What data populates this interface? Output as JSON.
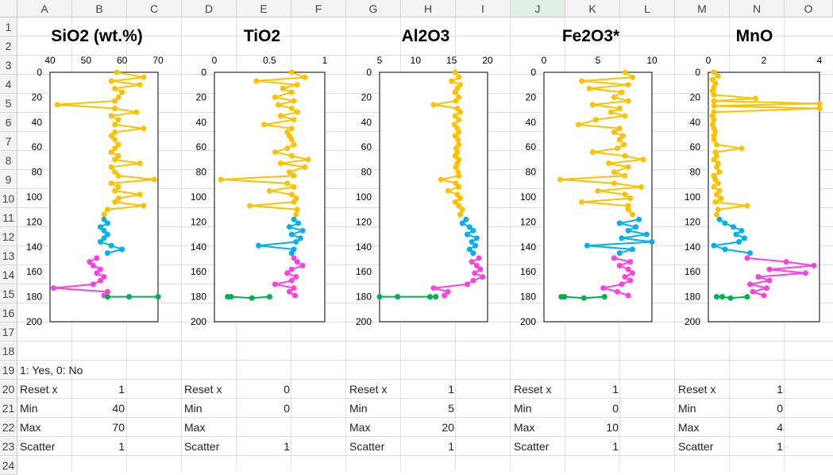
{
  "spreadsheet": {
    "columns": [
      "A",
      "B",
      "C",
      "D",
      "E",
      "F",
      "G",
      "H",
      "I",
      "J",
      "K",
      "L",
      "M",
      "N",
      "O"
    ],
    "selected_column": "J",
    "rows": [
      "1",
      "2",
      "3",
      "4",
      "5",
      "6",
      "7",
      "8",
      "9",
      "10",
      "11",
      "12",
      "13",
      "14",
      "15",
      "16",
      "17",
      "18",
      "19",
      "20",
      "21",
      "22",
      "23",
      "24"
    ]
  },
  "legend_note": "1: Yes, 0: No",
  "chart_data": [
    {
      "type": "scatter",
      "title": "SiO2 (wt.%)",
      "xlim": [
        40,
        70
      ],
      "xticks": [
        "40",
        "50",
        "60",
        "70"
      ],
      "ylim": [
        0,
        200
      ],
      "yticks": [
        "0",
        "20",
        "40",
        "60",
        "80",
        "100",
        "120",
        "140",
        "160",
        "180",
        "200"
      ],
      "y_inverted": true,
      "series": [
        {
          "name": "yellow",
          "color": "#FFC000",
          "depth": [
            0,
            4,
            7,
            10,
            13,
            16,
            20,
            23,
            26,
            29,
            32,
            35,
            38,
            42,
            45,
            48,
            51,
            54,
            58,
            61,
            64,
            67,
            70,
            73,
            76,
            80,
            83,
            86,
            89,
            92,
            95,
            98,
            101,
            104,
            107,
            110,
            114
          ],
          "values": [
            58.5,
            66,
            57,
            65,
            58,
            60,
            59,
            58,
            42,
            58,
            64,
            57,
            59,
            58,
            66,
            58,
            57,
            58,
            59,
            58,
            57,
            59,
            58,
            65,
            57,
            58,
            59,
            69,
            57,
            59,
            58,
            65,
            59,
            58,
            66,
            56,
            55
          ]
        },
        {
          "name": "blue",
          "color": "#00B0F0",
          "depth": [
            118,
            121,
            124,
            127,
            130,
            133,
            136,
            139,
            142,
            145
          ],
          "values": [
            55,
            56,
            54,
            55,
            56,
            55,
            54,
            57,
            60,
            56
          ]
        },
        {
          "name": "magenta",
          "color": "#FF40E0",
          "depth": [
            149,
            152,
            155,
            158,
            161,
            164,
            167,
            170,
            173,
            176,
            179
          ],
          "values": [
            53,
            51,
            52,
            54,
            53,
            55,
            54,
            52,
            41,
            56,
            55
          ]
        },
        {
          "name": "green",
          "color": "#00B050",
          "depth": [
            180,
            180,
            180
          ],
          "values": [
            56,
            62,
            70
          ]
        }
      ]
    },
    {
      "type": "scatter",
      "title": "TiO2",
      "xlim": [
        0,
        1
      ],
      "xticks": [
        "0",
        "0.5",
        "1"
      ],
      "ylim": [
        0,
        200
      ],
      "yticks": [
        "0",
        "20",
        "40",
        "60",
        "80",
        "100",
        "120",
        "140",
        "160",
        "180",
        "200"
      ],
      "y_inverted": true,
      "series": [
        {
          "name": "yellow",
          "color": "#FFC000",
          "depth": [
            0,
            4,
            7,
            10,
            13,
            16,
            20,
            23,
            26,
            29,
            32,
            35,
            38,
            42,
            45,
            48,
            51,
            54,
            58,
            61,
            64,
            67,
            70,
            73,
            76,
            80,
            83,
            86,
            89,
            92,
            95,
            98,
            101,
            104,
            107,
            110,
            114
          ],
          "values": [
            0.7,
            0.82,
            0.38,
            0.75,
            0.62,
            0.7,
            0.55,
            0.72,
            0.58,
            0.7,
            0.75,
            0.6,
            0.72,
            0.45,
            0.7,
            0.66,
            0.68,
            0.7,
            0.72,
            0.66,
            0.55,
            0.7,
            0.85,
            0.6,
            0.82,
            0.68,
            0.72,
            0.06,
            0.66,
            0.72,
            0.5,
            0.7,
            0.74,
            0.72,
            0.32,
            0.75,
            0.74
          ]
        },
        {
          "name": "blue",
          "color": "#00B0F0",
          "depth": [
            118,
            121,
            124,
            127,
            130,
            133,
            136,
            139,
            142,
            145
          ],
          "values": [
            0.72,
            0.76,
            0.68,
            0.8,
            0.7,
            0.78,
            0.74,
            0.4,
            0.72,
            0.7
          ]
        },
        {
          "name": "magenta",
          "color": "#FF40E0",
          "depth": [
            149,
            152,
            155,
            158,
            161,
            164,
            167,
            170,
            173,
            176,
            179
          ],
          "values": [
            0.72,
            0.75,
            0.8,
            0.7,
            0.66,
            0.74,
            0.7,
            0.55,
            0.72,
            0.68,
            0.73
          ]
        },
        {
          "name": "green",
          "color": "#00B050",
          "depth": [
            180,
            181,
            180,
            180
          ],
          "values": [
            0.5,
            0.34,
            0.15,
            0.12
          ]
        }
      ]
    },
    {
      "type": "scatter",
      "title": "Al2O3",
      "xlim": [
        5,
        20
      ],
      "xticks": [
        "5",
        "10",
        "15",
        "20"
      ],
      "ylim": [
        0,
        200
      ],
      "yticks": [
        "0",
        "20",
        "40",
        "60",
        "80",
        "100",
        "120",
        "140",
        "160",
        "180",
        "200"
      ],
      "y_inverted": true,
      "series": [
        {
          "name": "yellow",
          "color": "#FFC000",
          "depth": [
            0,
            4,
            7,
            10,
            13,
            16,
            20,
            23,
            26,
            29,
            32,
            35,
            38,
            42,
            45,
            48,
            51,
            54,
            58,
            61,
            64,
            67,
            70,
            73,
            76,
            80,
            83,
            86,
            89,
            92,
            95,
            98,
            101,
            104,
            107,
            110,
            114
          ],
          "values": [
            15.5,
            16,
            15,
            16.2,
            15.8,
            15.5,
            16,
            15.6,
            12.5,
            15.8,
            16.2,
            15.5,
            16,
            15.4,
            15.8,
            16,
            15.5,
            15.9,
            16,
            15.6,
            15.8,
            15.5,
            16,
            15.8,
            15.6,
            15.9,
            16,
            13.5,
            15.6,
            16,
            14.5,
            15.8,
            16.2,
            15.5,
            16,
            16.5,
            16.2
          ]
        },
        {
          "name": "blue",
          "color": "#00B0F0",
          "depth": [
            118,
            121,
            124,
            127,
            130,
            133,
            136,
            139,
            142,
            145
          ],
          "values": [
            17,
            16.5,
            17.5,
            18,
            17.2,
            18.5,
            17.8,
            18.3,
            17.5,
            18
          ]
        },
        {
          "name": "magenta",
          "color": "#FF40E0",
          "depth": [
            149,
            152,
            155,
            158,
            161,
            164,
            167,
            170,
            173,
            176,
            179
          ],
          "values": [
            18.8,
            17.8,
            18.5,
            19,
            18.2,
            19.3,
            18,
            17.2,
            12.5,
            14.5,
            14
          ]
        },
        {
          "name": "green",
          "color": "#00B050",
          "depth": [
            180,
            180,
            180,
            180
          ],
          "values": [
            12.8,
            12,
            7.5,
            5
          ]
        }
      ]
    },
    {
      "type": "scatter",
      "title": "Fe2O3*",
      "xlim": [
        0,
        10
      ],
      "xticks": [
        "0",
        "5",
        "10"
      ],
      "ylim": [
        0,
        200
      ],
      "yticks": [
        "0",
        "20",
        "40",
        "60",
        "80",
        "100",
        "120",
        "140",
        "160",
        "180",
        "200"
      ],
      "y_inverted": true,
      "series": [
        {
          "name": "yellow",
          "color": "#FFC000",
          "depth": [
            0,
            4,
            7,
            10,
            13,
            16,
            20,
            23,
            26,
            29,
            32,
            35,
            38,
            42,
            45,
            48,
            51,
            54,
            58,
            61,
            64,
            67,
            70,
            73,
            76,
            80,
            83,
            86,
            89,
            92,
            95,
            98,
            101,
            104,
            107,
            110,
            114
          ],
          "values": [
            7.5,
            8.2,
            3.5,
            7.8,
            4.2,
            7.2,
            6.5,
            7.8,
            4.5,
            7,
            6.2,
            7.5,
            4.8,
            3.2,
            7,
            6.5,
            7.3,
            7,
            7.4,
            6.8,
            4.5,
            7.5,
            9.2,
            6,
            7.8,
            6.5,
            7.5,
            1.5,
            6.5,
            9,
            5,
            7.5,
            8,
            3.5,
            7.8,
            7.8,
            8.2
          ]
        },
        {
          "name": "blue",
          "color": "#00B0F0",
          "depth": [
            118,
            121,
            124,
            127,
            130,
            133,
            136,
            139,
            142,
            145
          ],
          "values": [
            8.8,
            7,
            8.5,
            7.8,
            9.5,
            7.2,
            10,
            4,
            8.2,
            7
          ]
        },
        {
          "name": "magenta",
          "color": "#FF40E0",
          "depth": [
            149,
            152,
            155,
            158,
            161,
            164,
            167,
            170,
            173,
            176,
            179
          ],
          "values": [
            6.5,
            8,
            7,
            7.8,
            8.2,
            7.5,
            8,
            7.2,
            5.5,
            6.8,
            7.8
          ]
        },
        {
          "name": "green",
          "color": "#00B050",
          "depth": [
            180,
            181,
            180,
            180
          ],
          "values": [
            5.6,
            3.7,
            1.9,
            1.6
          ]
        }
      ]
    },
    {
      "type": "scatter",
      "title": "MnO",
      "xlim": [
        0,
        4
      ],
      "xticks": [
        "0",
        "2",
        "4"
      ],
      "ylim": [
        0,
        200
      ],
      "yticks": [
        "0",
        "20",
        "40",
        "60",
        "80",
        "100",
        "120",
        "140",
        "160",
        "180",
        "200"
      ],
      "y_inverted": true,
      "series": [
        {
          "name": "yellow",
          "color": "#FFC000",
          "depth": [
            0,
            3,
            6,
            9,
            12,
            15,
            18,
            21,
            23,
            25,
            27,
            29,
            32,
            35,
            38,
            42,
            45,
            48,
            51,
            54,
            58,
            61,
            64,
            67,
            70,
            73,
            76,
            80,
            83,
            86,
            89,
            92,
            95,
            98,
            101,
            104,
            107,
            110,
            114
          ],
          "values": [
            0.2,
            0.35,
            0.15,
            0.25,
            0.2,
            0.15,
            0.2,
            1.7,
            0.2,
            4,
            0.2,
            4,
            0.2,
            0.15,
            0.2,
            0.15,
            0.2,
            0.25,
            0.2,
            0.2,
            0.3,
            1.2,
            0.25,
            0.3,
            0.2,
            0.35,
            0.3,
            0.4,
            0.2,
            0.25,
            0.35,
            0.2,
            0.4,
            0.3,
            0.45,
            0.25,
            1.4,
            0.35,
            0.3
          ]
        },
        {
          "name": "blue",
          "color": "#00B0F0",
          "depth": [
            118,
            121,
            124,
            127,
            130,
            133,
            136,
            139,
            142,
            145
          ],
          "values": [
            0.4,
            0.6,
            0.9,
            1.2,
            1,
            1.3,
            1.1,
            0.2,
            0.6,
            1.5
          ]
        },
        {
          "name": "magenta",
          "color": "#FF40E0",
          "depth": [
            149,
            152,
            155,
            158,
            161,
            164,
            167,
            170,
            173,
            176,
            179
          ],
          "values": [
            1.4,
            2.8,
            3.8,
            2.2,
            3.5,
            1.8,
            2.2,
            1.5,
            2.1,
            1.6,
            2
          ]
        },
        {
          "name": "green",
          "color": "#00B050",
          "depth": [
            180,
            181,
            180,
            180
          ],
          "values": [
            1.4,
            0.8,
            0.5,
            0.3
          ]
        }
      ]
    }
  ],
  "settings": [
    {
      "reset_label": "Reset x",
      "reset_value": "1",
      "min_label": "Min",
      "min_value": "40",
      "max_label": "Max",
      "max_value": "70",
      "scatter_label": "Scatter",
      "scatter_value": "1"
    },
    {
      "reset_label": "Reset x",
      "reset_value": "0",
      "min_label": "Min",
      "min_value": "0",
      "max_label": "Max",
      "max_value": "",
      "scatter_label": "Scatter",
      "scatter_value": "1"
    },
    {
      "reset_label": "Reset x",
      "reset_value": "1",
      "min_label": "Min",
      "min_value": "5",
      "max_label": "Max",
      "max_value": "20",
      "scatter_label": "Scatter",
      "scatter_value": "1"
    },
    {
      "reset_label": "Reset x",
      "reset_value": "1",
      "min_label": "Min",
      "min_value": "0",
      "max_label": "Max",
      "max_value": "10",
      "scatter_label": "Scatter",
      "scatter_value": "1"
    },
    {
      "reset_label": "Reset x",
      "reset_value": "1",
      "min_label": "Min",
      "min_value": "0",
      "max_label": "Max",
      "max_value": "4",
      "scatter_label": "Scatter",
      "scatter_value": "1"
    }
  ]
}
